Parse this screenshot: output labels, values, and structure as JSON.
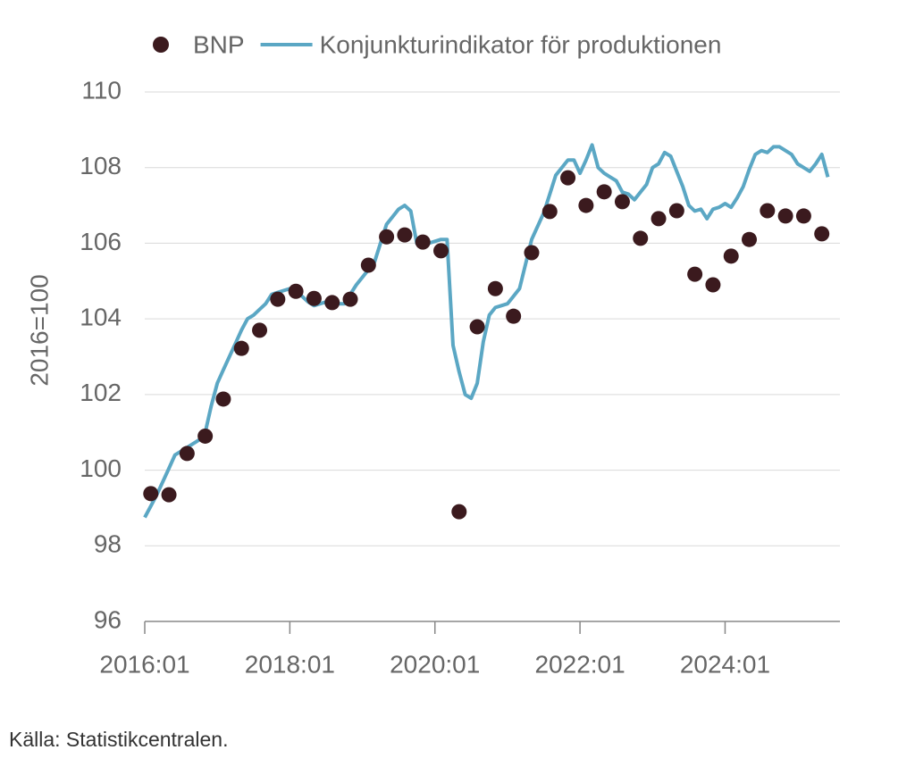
{
  "chart_data": {
    "type": "line",
    "y_label": "2016=100",
    "source": "Källa: Statistikcentralen.",
    "categories": [
      "2016:01",
      null,
      null,
      null,
      null,
      null,
      null,
      null,
      null,
      null,
      null,
      null,
      null,
      null,
      null,
      null,
      null,
      null,
      null,
      null,
      null,
      null,
      null,
      null,
      "2018:01",
      null,
      null,
      null,
      null,
      null,
      null,
      null,
      null,
      null,
      null,
      null,
      null,
      null,
      null,
      null,
      null,
      null,
      null,
      null,
      null,
      null,
      null,
      null,
      "2020:01",
      null,
      null,
      null,
      null,
      null,
      null,
      null,
      null,
      null,
      null,
      null,
      null,
      null,
      null,
      null,
      null,
      null,
      null,
      null,
      null,
      null,
      null,
      null,
      "2022:01",
      null,
      null,
      null,
      null,
      null,
      null,
      null,
      null,
      null,
      null,
      null,
      null,
      null,
      null,
      null,
      null,
      null,
      null,
      null,
      null,
      null,
      null,
      null,
      "2024:01",
      null,
      null,
      null,
      null,
      null,
      null,
      null,
      null,
      null,
      null,
      null,
      null,
      null,
      null,
      null,
      null,
      null
    ],
    "series": [
      {
        "name": "BNP",
        "color": "#3b1a1e",
        "style": "markers",
        "values": [
          null,
          99.38,
          null,
          null,
          99.35,
          null,
          null,
          100.44,
          null,
          null,
          100.9,
          null,
          null,
          101.88,
          null,
          null,
          103.22,
          null,
          null,
          103.7,
          null,
          null,
          104.52,
          null,
          null,
          104.73,
          null,
          null,
          104.54,
          null,
          null,
          104.43,
          null,
          null,
          104.52,
          null,
          null,
          105.42,
          null,
          null,
          106.17,
          null,
          null,
          106.22,
          null,
          null,
          106.03,
          null,
          null,
          105.8,
          null,
          null,
          98.9,
          null,
          null,
          103.79,
          null,
          null,
          104.8,
          null,
          null,
          104.07,
          null,
          null,
          105.75,
          null,
          null,
          106.84,
          null,
          null,
          107.73,
          null,
          null,
          107.0,
          null,
          null,
          107.36,
          null,
          null,
          107.1,
          null,
          null,
          106.13,
          null,
          null,
          106.65,
          null,
          null,
          106.86,
          null,
          null,
          105.18,
          null,
          null,
          104.9,
          null,
          null,
          105.66,
          null,
          null,
          106.1,
          null,
          null,
          106.86,
          null,
          null,
          106.72,
          null,
          null,
          106.72,
          null,
          null,
          106.25,
          null
        ]
      },
      {
        "name": "Konjunkturindikator för produktionen",
        "color": "#5ba7c4",
        "style": "line",
        "values": [
          98.75,
          99.05,
          99.35,
          99.7,
          100.05,
          100.4,
          100.5,
          100.6,
          100.7,
          100.8,
          101.0,
          101.7,
          102.3,
          102.65,
          103.0,
          103.35,
          103.7,
          104.0,
          104.1,
          104.25,
          104.4,
          104.65,
          104.7,
          104.75,
          104.8,
          104.7,
          104.6,
          104.45,
          104.35,
          104.4,
          104.45,
          104.4,
          104.4,
          104.4,
          104.65,
          104.9,
          105.1,
          105.3,
          105.5,
          106.0,
          106.5,
          106.7,
          106.9,
          107.0,
          106.85,
          106.0,
          106.0,
          106.0,
          106.05,
          106.1,
          106.1,
          103.3,
          102.6,
          102.0,
          101.9,
          102.3,
          103.4,
          104.1,
          104.3,
          104.35,
          104.4,
          104.6,
          104.8,
          105.45,
          106.1,
          106.45,
          106.8,
          107.3,
          107.8,
          108.0,
          108.2,
          108.2,
          107.85,
          108.2,
          108.6,
          108.0,
          107.85,
          107.75,
          107.65,
          107.35,
          107.3,
          107.15,
          107.35,
          107.55,
          108.0,
          108.1,
          108.4,
          108.3,
          107.9,
          107.5,
          107.0,
          106.85,
          106.9,
          106.65,
          106.9,
          106.95,
          107.05,
          106.95,
          107.2,
          107.5,
          107.95,
          108.35,
          108.45,
          108.4,
          108.55,
          108.55,
          108.45,
          108.35,
          108.1,
          108.0,
          107.9,
          108.1,
          108.35,
          107.75
        ]
      }
    ],
    "ylim": [
      96,
      110
    ],
    "yticks": [
      96,
      98,
      100,
      102,
      104,
      106,
      108,
      110
    ],
    "grid": true
  }
}
